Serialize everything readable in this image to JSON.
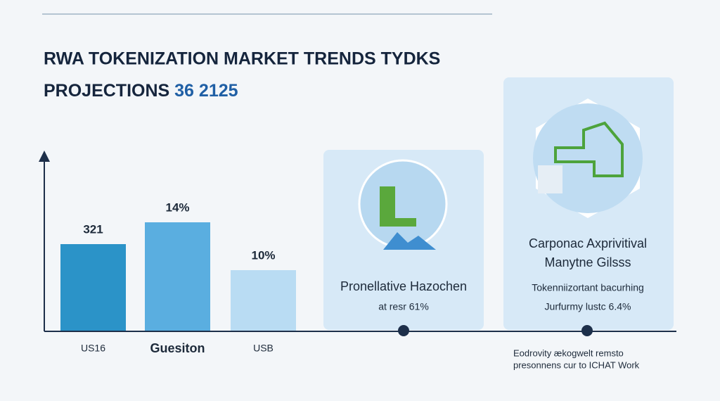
{
  "title": {
    "line1": "RWA TOKENIZATION MARKET TRENDS TYDKS",
    "line2": "PROJECTIONS",
    "line2_highlight": "36 2125"
  },
  "chart_data": {
    "type": "bar",
    "categories": [
      "US16",
      "Guesiton",
      "USB"
    ],
    "series": [
      {
        "values": [
          12.3,
          15.4,
          8.6
        ],
        "colors": [
          "#2b93c8",
          "#5aaee0",
          "#b9dcf3"
        ]
      }
    ],
    "annotations": [
      "321",
      "14%",
      "10%"
    ],
    "ylim": [
      0,
      25
    ]
  },
  "cards": [
    {
      "title": [
        "Pronellative Hazochen"
      ],
      "subtitle": [
        "at resr 61%"
      ]
    },
    {
      "title": [
        "Carponac Axprivitival",
        "Manytne Gilsss"
      ],
      "subtitle": [
        "Tokenniizortant bacurhing",
        "Jurfurmy lustc 6.4%"
      ]
    }
  ],
  "footnote": [
    "Eodrovity ækogwelt remsto",
    "presonnens cur to ICHAT Work"
  ]
}
